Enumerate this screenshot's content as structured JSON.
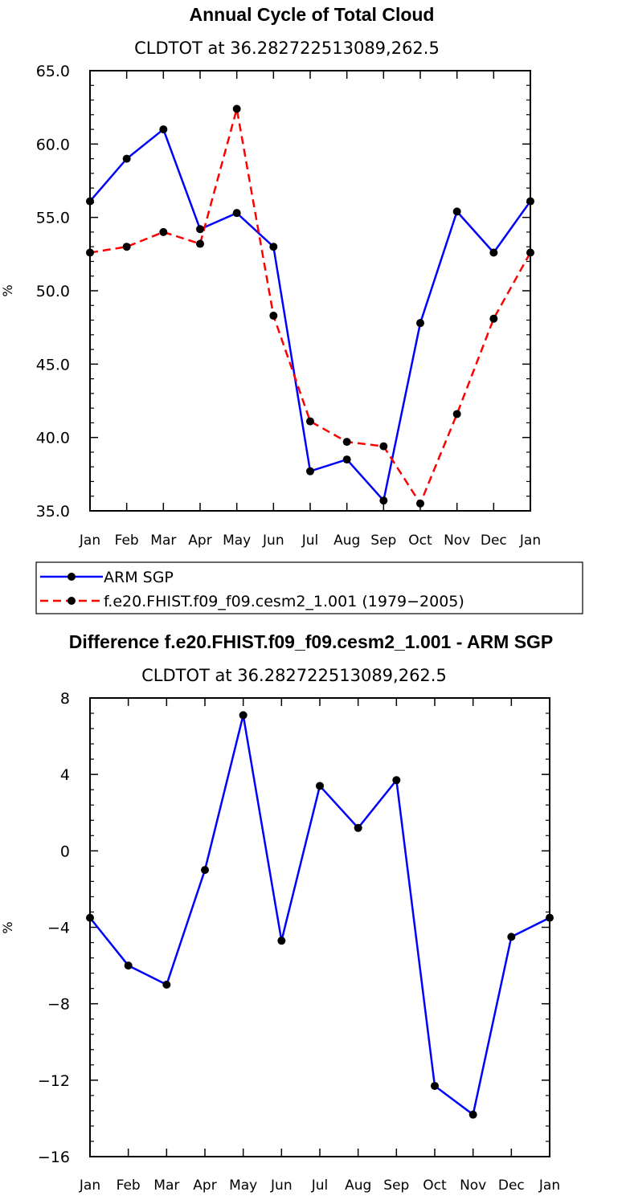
{
  "chart_data": [
    {
      "type": "line",
      "title": "Annual Cycle of Total Cloud",
      "subtitle": "CLDTOT at 36.282722513089,262.5",
      "ylabel": "%",
      "xlabel": "",
      "ylim": [
        35,
        65
      ],
      "yticks": [
        "35.0",
        "40.0",
        "45.0",
        "50.0",
        "55.0",
        "60.0",
        "65.0"
      ],
      "ytick_values": [
        35,
        40,
        45,
        50,
        55,
        60,
        65
      ],
      "categories": [
        "Jan",
        "Feb",
        "Mar",
        "Apr",
        "May",
        "Jun",
        "Jul",
        "Aug",
        "Sep",
        "Oct",
        "Nov",
        "Dec",
        "Jan"
      ],
      "series": [
        {
          "name": "ARM SGP",
          "color": "#0000ff",
          "dashed": false,
          "values": [
            56.1,
            59.0,
            61.0,
            54.2,
            55.3,
            53.0,
            37.7,
            38.5,
            35.7,
            47.8,
            55.4,
            52.6,
            56.1
          ]
        },
        {
          "name": "f.e20.FHIST.f09_f09.cesm2_1.001 (1979−2005)",
          "color": "#ff0000",
          "dashed": true,
          "values": [
            52.6,
            53.0,
            54.0,
            53.2,
            62.4,
            48.3,
            41.1,
            39.7,
            39.4,
            35.5,
            41.6,
            48.1,
            52.6
          ]
        }
      ],
      "legend_position": "bottom"
    },
    {
      "type": "line",
      "title": "Difference f.e20.FHIST.f09_f09.cesm2_1.001 - ARM SGP",
      "subtitle": "CLDTOT at 36.282722513089,262.5",
      "ylabel": "%",
      "xlabel": "",
      "ylim": [
        -16,
        8
      ],
      "yticks": [
        "−16",
        "−12",
        "−8",
        "−4",
        "0",
        "4",
        "8"
      ],
      "ytick_values": [
        -16,
        -12,
        -8,
        -4,
        0,
        4,
        8
      ],
      "categories": [
        "Jan",
        "Feb",
        "Mar",
        "Apr",
        "May",
        "Jun",
        "Jul",
        "Aug",
        "Sep",
        "Oct",
        "Nov",
        "Dec",
        "Jan"
      ],
      "series": [
        {
          "color": "#0000ff",
          "dashed": false,
          "values": [
            -3.5,
            -6.0,
            -7.0,
            -1.0,
            7.1,
            -4.7,
            3.4,
            1.2,
            3.7,
            -12.3,
            -13.8,
            -4.5,
            -3.5
          ]
        }
      ]
    }
  ]
}
